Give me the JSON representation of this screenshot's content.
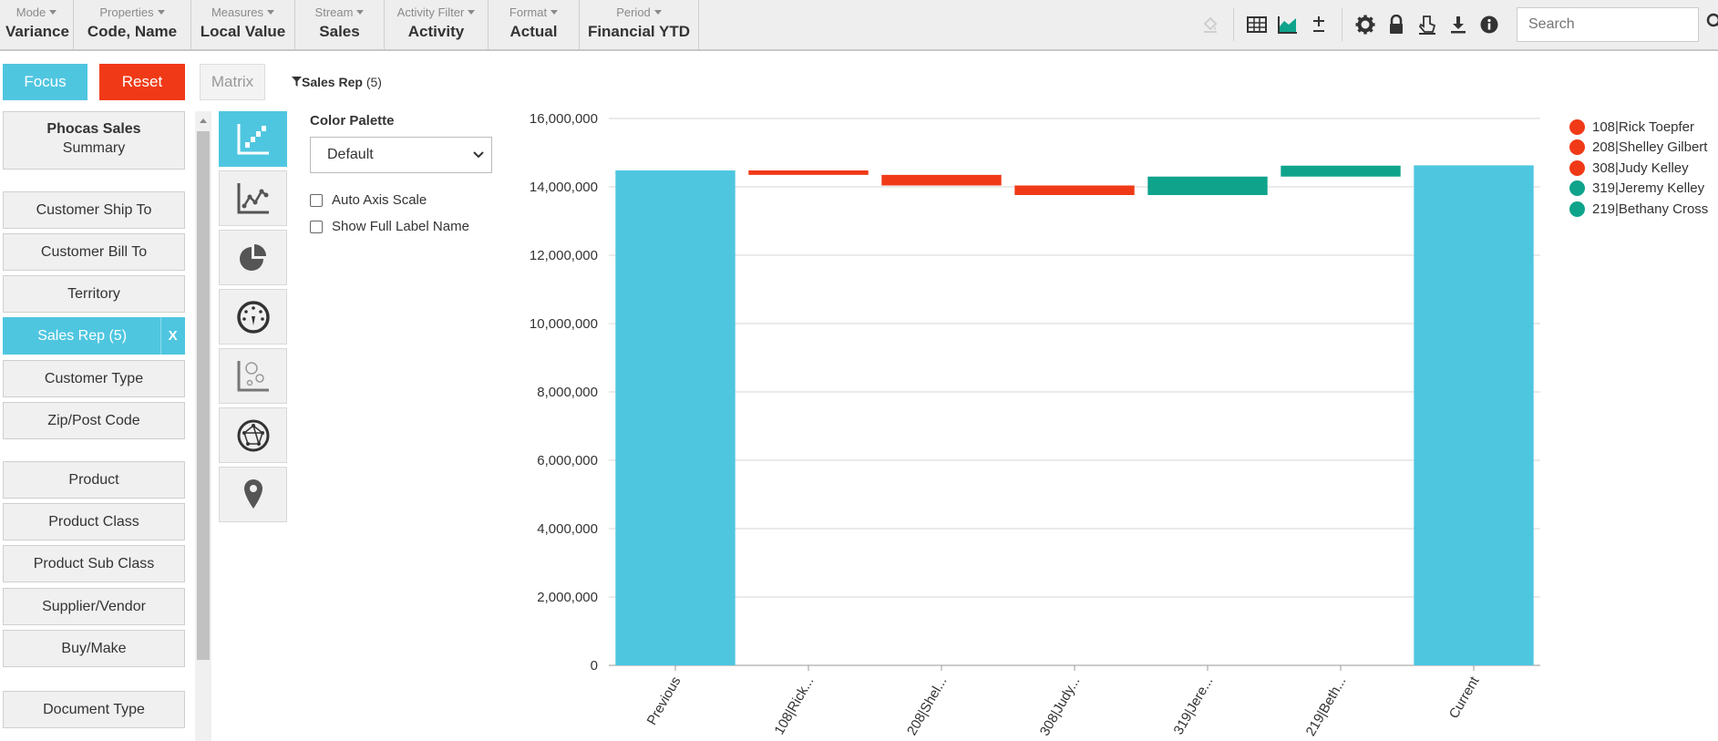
{
  "toolbar": {
    "groups": [
      {
        "label": "Mode",
        "value": "Variance"
      },
      {
        "label": "Properties",
        "value": "Code, Name"
      },
      {
        "label": "Measures",
        "value": "Local Value"
      },
      {
        "label": "Stream",
        "value": "Sales"
      },
      {
        "label": "Activity Filter",
        "value": "Activity"
      },
      {
        "label": "Format",
        "value": "Actual"
      },
      {
        "label": "Period",
        "value": "Financial YTD"
      }
    ],
    "search_placeholder": "Search",
    "icons": [
      "paint-bucket-icon",
      "table-icon",
      "area-chart-icon",
      "plus-minus-icon",
      "gear-icon",
      "lock-icon",
      "pointer-icon",
      "download-icon",
      "info-icon",
      "search-icon"
    ]
  },
  "actions": {
    "focus": "Focus",
    "reset": "Reset",
    "matrix": "Matrix",
    "filter_name": "Sales Rep",
    "filter_count": "(5)"
  },
  "summary": {
    "line1": "Phocas Sales",
    "line2": "Summary"
  },
  "dimensions": [
    "Customer Ship To",
    "Customer Bill To",
    "Territory",
    "Sales Rep (5)",
    "Customer Type",
    "Zip/Post Code",
    "Product",
    "Product Class",
    "Product Sub Class",
    "Supplier/Vendor",
    "Buy/Make",
    "Document Type"
  ],
  "active_dimension_close": "X",
  "chart_types": [
    "waterfall-chart-icon",
    "line-chart-icon",
    "pie-chart-icon",
    "gauge-icon",
    "bubble-chart-icon",
    "network-icon",
    "map-pin-icon"
  ],
  "options": {
    "palette_title": "Color Palette",
    "palette_value": "Default",
    "auto_axis": "Auto Axis Scale",
    "full_label": "Show Full Label Name"
  },
  "colors": {
    "accent": "#4fc6e0",
    "negative": "#f03a17",
    "positive": "#0fa38c",
    "total": "#4fc6e0"
  },
  "chart_data": {
    "type": "bar",
    "subtype": "waterfall",
    "categories": [
      "Previous",
      "108|Rick...",
      "208|Shel...",
      "308|Judy...",
      "319|Jere...",
      "219|Beth...",
      "Current"
    ],
    "ylim": [
      0,
      16000000
    ],
    "yticks": [
      "0",
      "2,000,000",
      "4,000,000",
      "6,000,000",
      "8,000,000",
      "10,000,000",
      "12,000,000",
      "14,000,000",
      "16,000,000"
    ],
    "steps": [
      {
        "kind": "total",
        "value": 14480000
      },
      {
        "kind": "delta",
        "value": -130000
      },
      {
        "kind": "delta",
        "value": -310000
      },
      {
        "kind": "delta",
        "value": -280000
      },
      {
        "kind": "delta",
        "value": 540000
      },
      {
        "kind": "delta",
        "value": 320000
      },
      {
        "kind": "total",
        "value": 14630000
      }
    ],
    "legend": [
      {
        "label": "108|Rick Toepfer",
        "color": "#f03a17"
      },
      {
        "label": "208|Shelley Gilbert",
        "color": "#f03a17"
      },
      {
        "label": "308|Judy Kelley",
        "color": "#f03a17"
      },
      {
        "label": "319|Jeremy Kelley",
        "color": "#0fa38c"
      },
      {
        "label": "219|Bethany Cross",
        "color": "#0fa38c"
      }
    ],
    "grid": true,
    "legend_position": "right"
  }
}
